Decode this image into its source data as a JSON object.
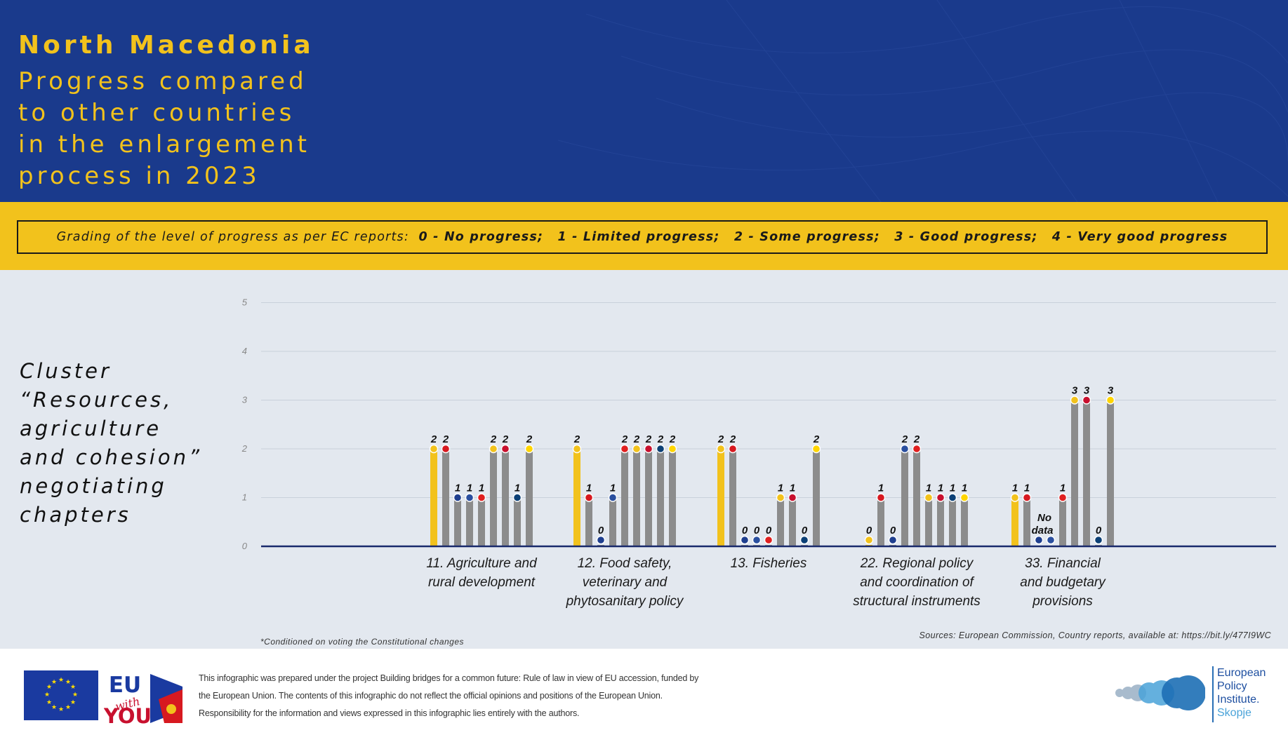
{
  "header": {
    "country": "North Macedonia",
    "subtitle_lines": [
      "Progress compared",
      "to other countries",
      "in the enlargement",
      "process in 2023"
    ]
  },
  "grading": {
    "intro": "Grading of the level of progress as per EC reports:",
    "levels": [
      "0 - No progress;",
      "1 - Limited progress;",
      "2 - Some progress;",
      "3 - Good progress;",
      "4 - Very good progress"
    ]
  },
  "cluster": {
    "lines": [
      "Cluster",
      "“Resources,",
      "agriculture",
      "and cohesion”",
      "negotiating",
      "chapters"
    ]
  },
  "colors": {
    "header_bg": "#1a3a8c",
    "accent_yellow": "#f2c21c",
    "bar_gray": "#8c8c8c",
    "bar_highlight": "#f2c21c",
    "axis": "#1a2a6c",
    "panel_bg": "#e3e8ef"
  },
  "chart_data": {
    "type": "bar",
    "ylim": [
      0,
      5
    ],
    "yticks": [
      "0",
      "1",
      "2",
      "3",
      "4",
      "5"
    ],
    "grid": true,
    "categories": [
      "11. Agriculture and rural development",
      "12. Food safety, veterinary and phytosanitary policy",
      "13. Fisheries",
      "22. Regional policy and coordination of structural instruments",
      "33. Financial and budgetary provisions"
    ],
    "category_label_lines": [
      [
        "11. Agriculture and",
        "rural development"
      ],
      [
        "12. Food safety,",
        "veterinary and",
        "phytosanitary policy"
      ],
      [
        "13. Fisheries"
      ],
      [
        "22. Regional policy",
        "and coordination of",
        "structural instruments"
      ],
      [
        "33. Financial",
        "and budgetary",
        "provisions"
      ]
    ],
    "highlight_index": 0,
    "bar_icons": [
      "north-macedonia-flag-icon",
      "albania-flag-icon",
      "bosnia-flag-icon",
      "kosovo-flag-icon",
      "georgia-flag-icon",
      "moldova-flag-icon",
      "montenegro-flag-icon",
      "serbia-flag-icon",
      "ukraine-flag-icon"
    ],
    "icon_colors": [
      "#f2c21c",
      "#d71920",
      "#1f3f8f",
      "#2a4f9f",
      "#e02020",
      "#f2c21c",
      "#c8102e",
      "#0c4076",
      "#ffd500"
    ],
    "groups": [
      {
        "values": [
          2,
          2,
          1,
          1,
          1,
          2,
          2,
          1,
          2
        ],
        "labels": [
          "2",
          "2",
          "1",
          "1",
          "1",
          "2",
          "2",
          "1",
          "2"
        ]
      },
      {
        "values": [
          2,
          1,
          0,
          1,
          2,
          2,
          2,
          2,
          2
        ],
        "labels": [
          "2",
          "1",
          "0",
          "1",
          "2",
          "2",
          "2",
          "2",
          "2"
        ]
      },
      {
        "values": [
          2,
          2,
          0,
          0,
          0,
          1,
          1,
          0,
          2
        ],
        "labels": [
          "2",
          "2",
          "0",
          "0",
          "0",
          "1",
          "1",
          "0",
          "2"
        ]
      },
      {
        "values": [
          0,
          1,
          0,
          2,
          2,
          1,
          1,
          1,
          1
        ],
        "labels": [
          "0",
          "1",
          "0",
          "2",
          "2",
          "1",
          "1",
          "1",
          "1"
        ]
      },
      {
        "values": [
          1,
          1,
          null,
          null,
          1,
          3,
          3,
          0,
          3
        ],
        "labels": [
          "1",
          "1",
          "No",
          "data",
          "1",
          "3",
          "3",
          "0",
          "3"
        ]
      }
    ]
  },
  "footnote": "*Conditioned on voting the Constitutional changes",
  "sources": "Sources: European Commission, Country reports, available at: https://bit.ly/477I9WC",
  "footer": {
    "eu_with_you": {
      "line1": "EU",
      "line2": "with",
      "line3": "YOU"
    },
    "disclaimer": "This infographic was prepared under the project Building bridges for a common future: Rule of law in view of EU accession, funded by the European Union. The contents of this infographic do not reflect the official opinions and positions of the European Union. Responsibility for the information and views expressed in this infographic lies entirely with the authors.",
    "epi_lines": [
      "European",
      "Policy",
      "Institute.",
      "Skopje"
    ]
  }
}
